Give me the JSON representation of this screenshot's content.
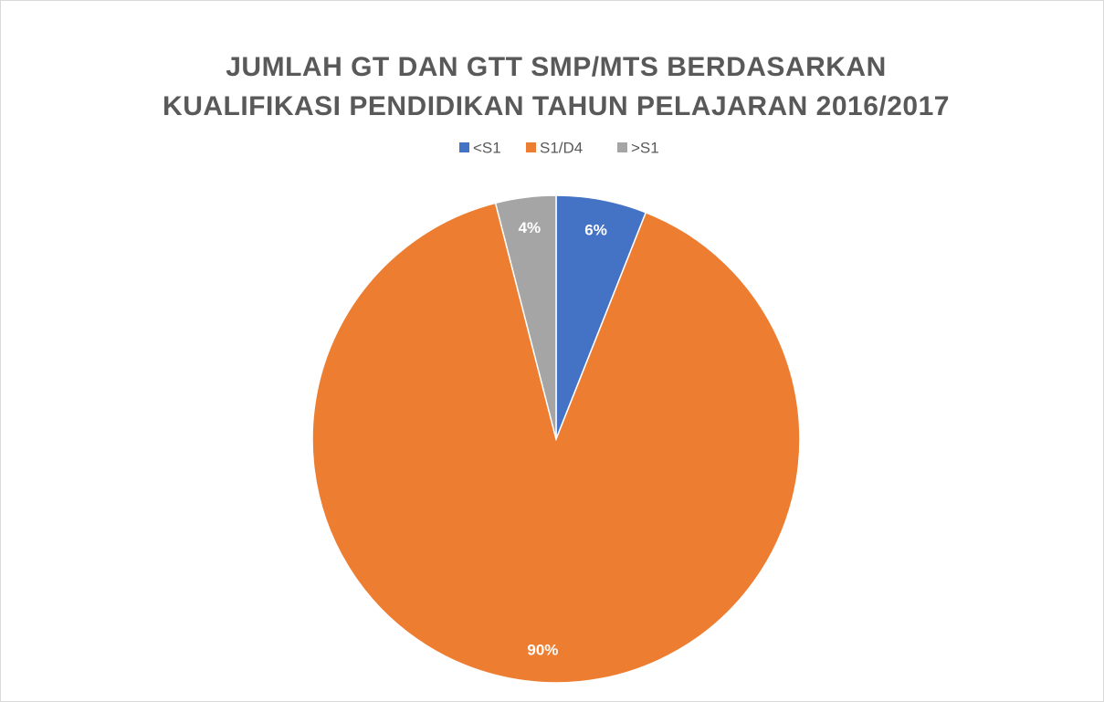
{
  "chart_data": {
    "type": "pie",
    "title": [
      "JUMLAH GT DAN GTT SMP/MTS BERDASARKAN",
      "KUALIFIKASI PENDIDIKAN TAHUN PELAJARAN 2016/2017"
    ],
    "categories": [
      "<S1",
      "S1/D4",
      ">S1"
    ],
    "values": [
      6,
      90,
      4
    ],
    "value_labels": [
      "6%",
      "90%",
      "4%"
    ],
    "colors": [
      "#4472c4",
      "#ed7d31",
      "#a5a5a5"
    ],
    "legend": "top"
  }
}
